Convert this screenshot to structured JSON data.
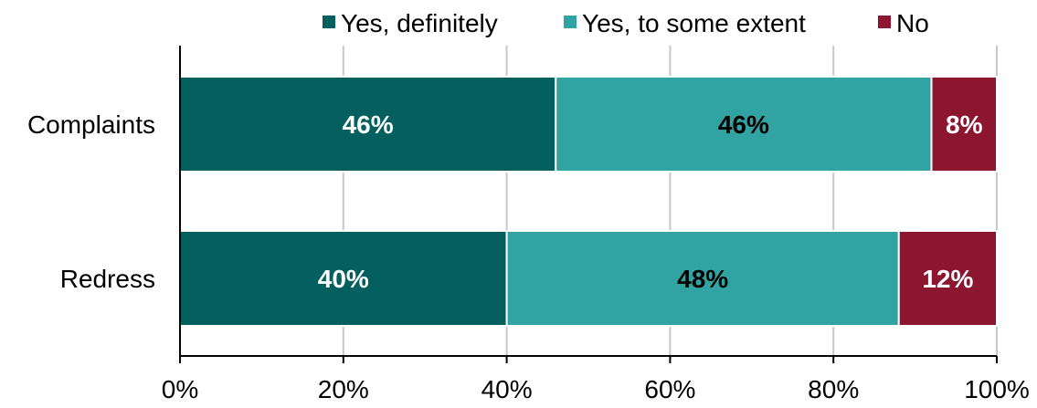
{
  "chart_data": {
    "type": "bar",
    "orientation": "horizontal",
    "stacked": true,
    "title": "",
    "xlabel": "",
    "ylabel": "",
    "categories": [
      "Complaints",
      "Redress"
    ],
    "series": [
      {
        "name": "Yes, definitely",
        "values": [
          46,
          40
        ],
        "labels": [
          "46%",
          "40%"
        ],
        "color": "#03605f",
        "label_color": "#ffffff"
      },
      {
        "name": "Yes, to some extent",
        "values": [
          46,
          48
        ],
        "labels": [
          "46%",
          "48%"
        ],
        "color": "#31a3a3",
        "label_color": "#000000"
      },
      {
        "name": "No",
        "values": [
          8,
          12
        ],
        "labels": [
          "8%",
          "12%"
        ],
        "color": "#8c1530",
        "label_color": "#ffffff"
      }
    ],
    "xlim": [
      0,
      100
    ],
    "x_ticks": [
      {
        "value": 0,
        "label": "0%"
      },
      {
        "value": 20,
        "label": "20%"
      },
      {
        "value": 40,
        "label": "40%"
      },
      {
        "value": 60,
        "label": "60%"
      },
      {
        "value": 80,
        "label": "80%"
      },
      {
        "value": 100,
        "label": "100%"
      }
    ],
    "grid": true,
    "grid_color": "#c8c8c8",
    "legend_position": "top"
  }
}
